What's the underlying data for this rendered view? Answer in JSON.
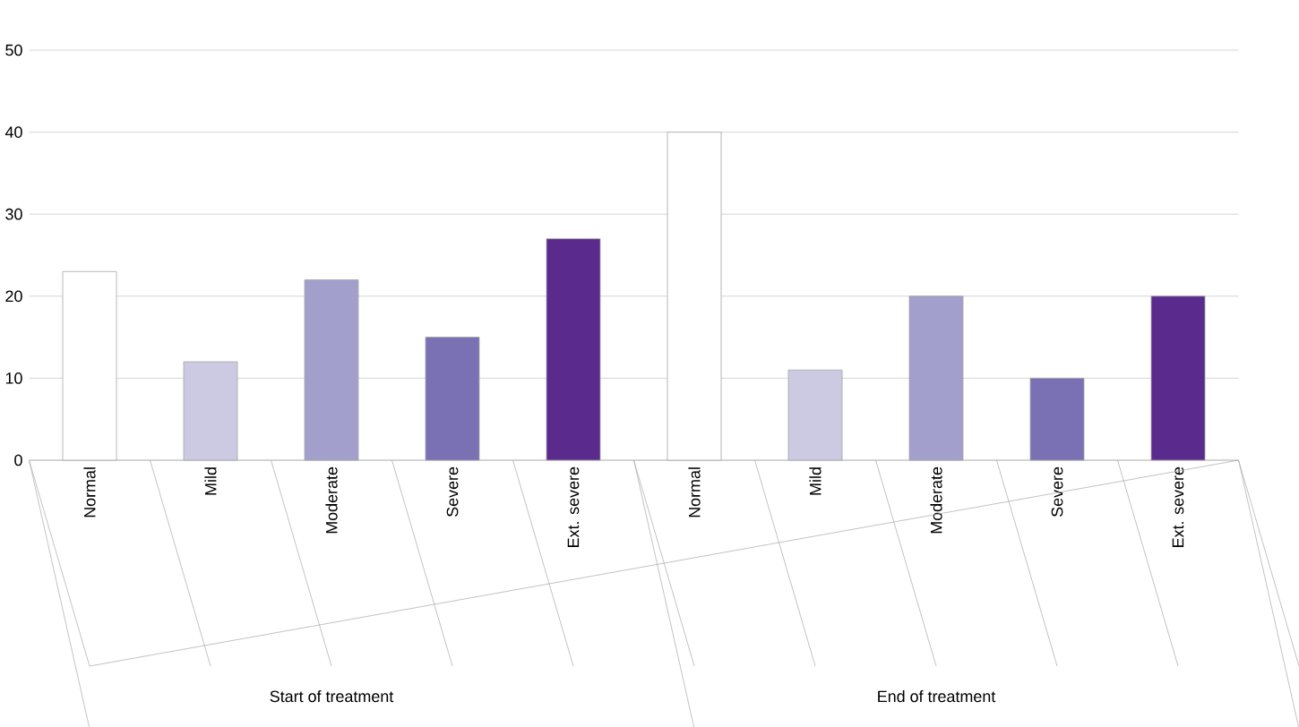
{
  "chart_data": {
    "type": "bar",
    "categories": [
      "Normal",
      "Mild",
      "Moderate",
      "Severe",
      "Ext. severe",
      "Normal",
      "Mild",
      "Moderate",
      "Severe",
      "Ext. severe"
    ],
    "values": [
      23,
      12,
      22,
      15,
      27,
      40,
      11,
      20,
      10,
      20
    ],
    "colors": [
      "#ffffff",
      "#ccc9e2",
      "#a29fcc",
      "#7a70b4",
      "#5a2a8c",
      "#ffffff",
      "#ccc9e2",
      "#a29fcc",
      "#7a70b4",
      "#5a2a8c"
    ],
    "ylim": [
      0,
      50
    ],
    "yticks": [
      0,
      10,
      20,
      30,
      40,
      50
    ],
    "grid": "y",
    "annotations": [
      "Start of treatment",
      "End of treatment"
    ]
  }
}
